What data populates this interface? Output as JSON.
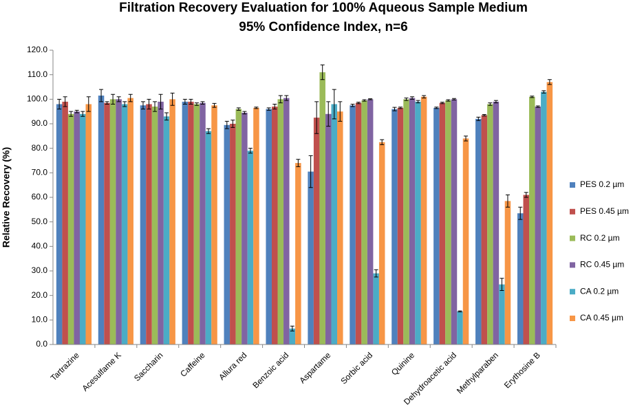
{
  "chart_data": {
    "type": "bar",
    "title": "Filtration Recovery Evaluation for 100% Aqueous Sample Medium",
    "subtitle": "95% Confidence Index, n=6",
    "y_label": "Relative Recovery (%)",
    "categories": [
      "Tartrazine",
      "Acesulfame K",
      "Saccharin",
      "Caffeine",
      "Allura red",
      "Benzoic acid",
      "Aspartame",
      "Sorbic acid",
      "Quinine",
      "Dehydroacetic acid",
      "Methylparaben",
      "Erythosine B"
    ],
    "series": [
      {
        "name": "PES 0.2 µm",
        "color": "#4f81bd",
        "values": [
          98,
          101.5,
          97.5,
          99,
          89.5,
          96,
          70.5,
          97.5,
          96,
          96.5,
          92,
          53.5
        ],
        "errors": [
          2,
          2.5,
          1.5,
          1,
          1.5,
          0.5,
          6.5,
          0.5,
          0.7,
          0.3,
          0.7,
          2.5
        ]
      },
      {
        "name": "PES 0.45 µm",
        "color": "#c0504d",
        "values": [
          99,
          98.5,
          98,
          99,
          90,
          97,
          92.5,
          98.5,
          96.5,
          98.5,
          93.5,
          61
        ],
        "errors": [
          2,
          0.5,
          2,
          1,
          1.5,
          1,
          6.5,
          0.3,
          0.3,
          0.3,
          0.3,
          1
        ]
      },
      {
        "name": "RC 0.2 µm",
        "color": "#9bbb59",
        "values": [
          94,
          100,
          97,
          98,
          96,
          100,
          111,
          99.5,
          100,
          99.5,
          98,
          101
        ],
        "errors": [
          1,
          2,
          2,
          0.5,
          0.5,
          1.5,
          3,
          0.3,
          0.5,
          0.3,
          0.5,
          0.3
        ]
      },
      {
        "name": "RC 0.45 µm",
        "color": "#8064a2",
        "values": [
          95,
          100,
          99,
          98.5,
          94.5,
          100.5,
          94,
          100,
          100.5,
          100,
          99,
          97
        ],
        "errors": [
          0.5,
          1,
          3,
          0.5,
          0.5,
          1,
          5,
          0.2,
          0.5,
          0.3,
          0.5,
          0.3
        ]
      },
      {
        "name": "CA 0.2 µm",
        "color": "#4bacc6",
        "values": [
          94,
          98,
          93,
          87,
          79,
          6.5,
          98,
          29,
          99,
          13.5,
          24.5,
          103
        ],
        "errors": [
          1,
          1,
          1.5,
          1,
          1,
          1,
          6,
          1.5,
          0.5,
          0.2,
          2.5,
          0.5
        ]
      },
      {
        "name": "CA 0.45 µm",
        "color": "#f79646",
        "values": [
          98,
          100.5,
          100,
          97.5,
          96.5,
          74,
          95,
          82.5,
          101,
          84,
          58.5,
          107
        ],
        "errors": [
          3,
          1.5,
          2.5,
          0.8,
          0.3,
          1.5,
          4,
          1,
          0.5,
          1,
          2.5,
          1
        ]
      }
    ],
    "ylim": [
      0,
      120
    ],
    "yticks": [
      {
        "value": 0,
        "label": "0.0"
      },
      {
        "value": 10,
        "label": "10.0"
      },
      {
        "value": 20,
        "label": "20.0"
      },
      {
        "value": 30,
        "label": "30.0"
      },
      {
        "value": 40,
        "label": "40.0"
      },
      {
        "value": 50,
        "label": "50.0"
      },
      {
        "value": 60,
        "label": "60.0"
      },
      {
        "value": 70,
        "label": "70.0"
      },
      {
        "value": 80,
        "label": "80.0"
      },
      {
        "value": 90,
        "label": "90.0"
      },
      {
        "value": 100,
        "label": "100.0"
      },
      {
        "value": 110,
        "label": "110.0"
      },
      {
        "value": 120,
        "label": "120.0"
      }
    ],
    "grid": false,
    "legend_position": "right"
  }
}
